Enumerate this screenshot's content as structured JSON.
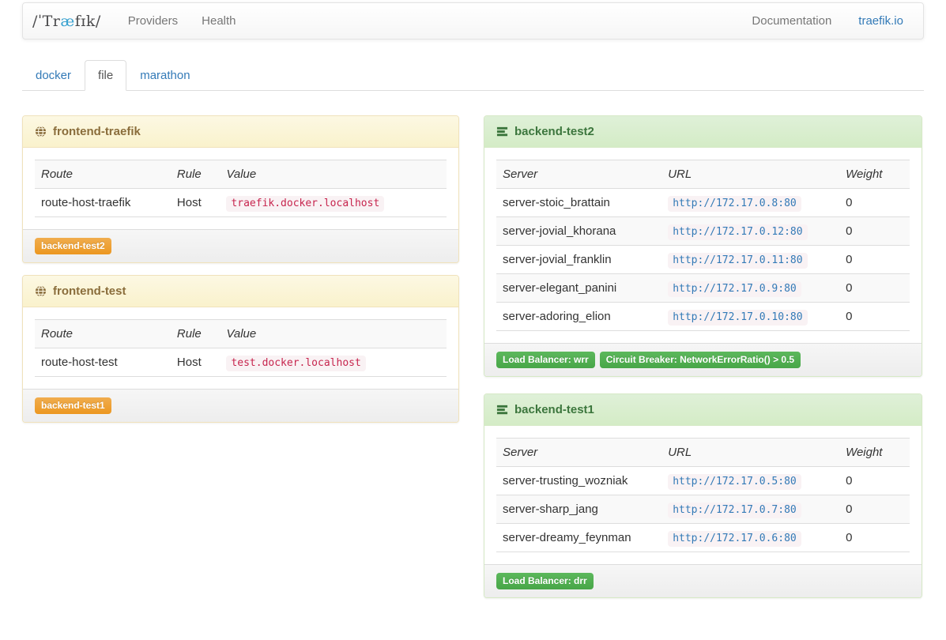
{
  "navbar": {
    "brand": {
      "pre": "/ˈTr",
      "ae": "æ",
      "post": "fɪk/"
    },
    "links": [
      {
        "label": "Providers"
      },
      {
        "label": "Health"
      }
    ],
    "right_links": [
      {
        "label": "Documentation"
      },
      {
        "label": "traefik.io"
      }
    ]
  },
  "tabs": [
    {
      "label": "docker"
    },
    {
      "label": "file"
    },
    {
      "label": "marathon"
    }
  ],
  "active_tab": "file",
  "frontends": [
    {
      "title": "frontend-traefik",
      "columns": [
        "Route",
        "Rule",
        "Value"
      ],
      "rows": [
        {
          "route": "route-host-traefik",
          "rule": "Host",
          "value": "traefik.docker.localhost"
        }
      ],
      "backend_labels": [
        {
          "label": "backend-test2"
        }
      ]
    },
    {
      "title": "frontend-test",
      "columns": [
        "Route",
        "Rule",
        "Value"
      ],
      "rows": [
        {
          "route": "route-host-test",
          "rule": "Host",
          "value": "test.docker.localhost"
        }
      ],
      "backend_labels": [
        {
          "label": "backend-test1"
        }
      ]
    }
  ],
  "backends": [
    {
      "title": "backend-test2",
      "columns": [
        "Server",
        "URL",
        "Weight"
      ],
      "servers": [
        {
          "name": "server-stoic_brattain",
          "url": "http://172.17.0.8:80",
          "weight": "0"
        },
        {
          "name": "server-jovial_khorana",
          "url": "http://172.17.0.12:80",
          "weight": "0"
        },
        {
          "name": "server-jovial_franklin",
          "url": "http://172.17.0.11:80",
          "weight": "0"
        },
        {
          "name": "server-elegant_panini",
          "url": "http://172.17.0.9:80",
          "weight": "0"
        },
        {
          "name": "server-adoring_elion",
          "url": "http://172.17.0.10:80",
          "weight": "0"
        }
      ],
      "footer_labels": [
        {
          "label": "Load Balancer: wrr"
        },
        {
          "label": "Circuit Breaker: NetworkErrorRatio() > 0.5"
        }
      ]
    },
    {
      "title": "backend-test1",
      "columns": [
        "Server",
        "URL",
        "Weight"
      ],
      "servers": [
        {
          "name": "server-trusting_wozniak",
          "url": "http://172.17.0.5:80",
          "weight": "0"
        },
        {
          "name": "server-sharp_jang",
          "url": "http://172.17.0.7:80",
          "weight": "0"
        },
        {
          "name": "server-dreamy_feynman",
          "url": "http://172.17.0.6:80",
          "weight": "0"
        }
      ],
      "footer_labels": [
        {
          "label": "Load Balancer: drr"
        }
      ]
    }
  ],
  "colors": {
    "link_blue": "#337ab7",
    "brand_ae_blue": "#3aa2d0",
    "warning_text": "#8a6d3b",
    "warning_header_bg": "#fcf8e3",
    "success_text": "#3c763d",
    "success_header_bg": "#dff0d8",
    "label_warning": "#f0ad4e",
    "label_success": "#5cb85c",
    "code_text": "#c7254e",
    "code_bg": "#f9f2f4"
  }
}
